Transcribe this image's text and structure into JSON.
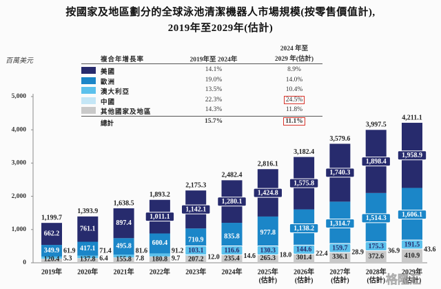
{
  "header": {
    "title_line1": "按國家及地區劃分的全球泳池清潔機器人市場規模(按零售價值計),",
    "title_line2": "2019年至2029年(估計)"
  },
  "legend_table": {
    "header_label": "複合年增長率",
    "col1_header": "2019年至 2024年",
    "col2_header_line1": "2024 年至",
    "col2_header_line2": "2029 年(估計)",
    "rows": [
      {
        "name": "美國",
        "color": "#272b6d",
        "cagr_2019_2024": "14.1%",
        "cagr_2024_2029": "8.9%"
      },
      {
        "name": "歐洲",
        "color": "#1b86c8",
        "cagr_2019_2024": "19.0%",
        "cagr_2024_2029": "14.0%"
      },
      {
        "name": "澳大利亞",
        "color": "#5cc1ec",
        "cagr_2019_2024": "13.5%",
        "cagr_2024_2029": "10.4%"
      },
      {
        "name": "中國",
        "color": "#c4e6f6",
        "cagr_2019_2024": "22.3%",
        "cagr_2024_2029": "24.5%",
        "highlighted": true
      },
      {
        "name": "其他國家及地區",
        "color": "#c9c9c9",
        "cagr_2019_2024": "14.3%",
        "cagr_2024_2029": "11.8%"
      }
    ],
    "total": {
      "name": "總計",
      "cagr_2019_2024": "15.7%",
      "cagr_2024_2029": "11.1%",
      "highlighted": true
    },
    "highlight_color": "#d8332a"
  },
  "watermark": "格隆汇",
  "chart_data": {
    "type": "bar",
    "stacked": true,
    "title": "按國家及地區劃分的全球泳池清潔機器人市場規模(按零售價值計),2019年至2029年(估計)",
    "xlabel": "",
    "ylabel": "百萬美元",
    "ylim": [
      0,
      5000
    ],
    "yticks": [
      0,
      1000,
      2000,
      3000,
      4000,
      5000
    ],
    "ytick_labels": [
      "0",
      "1,000",
      "2,000",
      "3,000",
      "4,000",
      "5,000"
    ],
    "grid": false,
    "legend_placement": "top-center table",
    "categories": [
      {
        "year": "2019年",
        "note": ""
      },
      {
        "year": "2020年",
        "note": ""
      },
      {
        "year": "2021年",
        "note": ""
      },
      {
        "year": "2022年",
        "note": ""
      },
      {
        "year": "2023年",
        "note": ""
      },
      {
        "year": "2024年",
        "note": ""
      },
      {
        "year": "2025年",
        "note": "(估計)"
      },
      {
        "year": "2026年",
        "note": "(估計)"
      },
      {
        "year": "2027年",
        "note": "(估計)"
      },
      {
        "year": "2028年",
        "note": "(估計)"
      },
      {
        "year": "2029年",
        "note": "(估計)"
      }
    ],
    "series": [
      {
        "key": "us",
        "name": "美國",
        "color": "#272b6d",
        "values": [
          662.2,
          761.1,
          897.4,
          1011.1,
          1142.1,
          1280.1,
          1424.8,
          1575.8,
          1740.3,
          1898.4,
          1958.9
        ]
      },
      {
        "key": "europe",
        "name": "歐洲",
        "color": "#1b86c8",
        "values": [
          349.9,
          417.1,
          495.8,
          600.4,
          710.9,
          835.8,
          977.8,
          1138.2,
          1314.7,
          1514.3,
          1606.1
        ]
      },
      {
        "key": "australia",
        "name": "澳大利亞",
        "color": "#5cc1ec",
        "values": [
          61.9,
          71.4,
          81.6,
          91.2,
          103.1,
          116.6,
          130.3,
          144.6,
          159.7,
          175.3,
          191.5
        ]
      },
      {
        "key": "china",
        "name": "中國",
        "color": "#c4e6f6",
        "values": [
          5.3,
          6.4,
          7.8,
          9.7,
          12.0,
          14.6,
          18.0,
          22.4,
          28.9,
          36.9,
          43.6
        ]
      },
      {
        "key": "other",
        "name": "其他國家及地區",
        "color": "#c9c9c9",
        "values": [
          120.4,
          137.8,
          155.8,
          180.8,
          207.2,
          235.4,
          265.3,
          301.4,
          336.1,
          372.6,
          410.9
        ]
      }
    ],
    "totals": [
      1199.7,
      1393.9,
      1638.5,
      1893.2,
      2175.3,
      2482.4,
      2816.1,
      3182.4,
      3579.6,
      3997.5,
      4211.1
    ]
  }
}
